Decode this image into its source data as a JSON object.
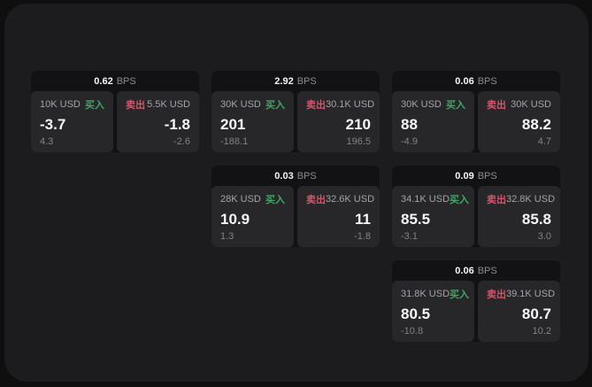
{
  "labels": {
    "buy": "买入",
    "sell": "卖出",
    "bps_unit": "BPS"
  },
  "colors": {
    "background": "#0f0f10",
    "panel": "#1c1c1e",
    "card_base": "#121214",
    "tile": "#27272a",
    "buy_green": "#43a564",
    "sell_red": "#d4556a",
    "text_primary": "#f7f7f8",
    "text_muted": "#a3a3a8",
    "text_faint": "#818186"
  },
  "cards": [
    {
      "bps": "0.62",
      "buy": {
        "notional": "10K USD",
        "price": "-3.7",
        "delta": "4.3"
      },
      "sell": {
        "notional": "5.5K USD",
        "price": "-1.8",
        "delta": "-2.6"
      }
    },
    {
      "bps": "2.92",
      "buy": {
        "notional": "30K USD",
        "price": "201",
        "delta": "-188.1"
      },
      "sell": {
        "notional": "30.1K USD",
        "price": "210",
        "delta": "196.5"
      }
    },
    {
      "bps": "0.06",
      "buy": {
        "notional": "30K USD",
        "price": "88",
        "delta": "-4.9"
      },
      "sell": {
        "notional": "30K USD",
        "price": "88.2",
        "delta": "4.7"
      }
    },
    {
      "bps": "0.03",
      "buy": {
        "notional": "28K USD",
        "price": "10.9",
        "delta": "1.3"
      },
      "sell": {
        "notional": "32.6K USD",
        "price": "11",
        "delta": "-1.8"
      }
    },
    {
      "bps": "0.09",
      "buy": {
        "notional": "34.1K USD",
        "price": "85.5",
        "delta": "-3.1"
      },
      "sell": {
        "notional": "32.8K USD",
        "price": "85.8",
        "delta": "3.0"
      }
    },
    {
      "bps": "0.06",
      "buy": {
        "notional": "31.8K USD",
        "price": "80.5",
        "delta": "-10.8"
      },
      "sell": {
        "notional": "39.1K USD",
        "price": "80.7",
        "delta": "10.2"
      }
    }
  ]
}
